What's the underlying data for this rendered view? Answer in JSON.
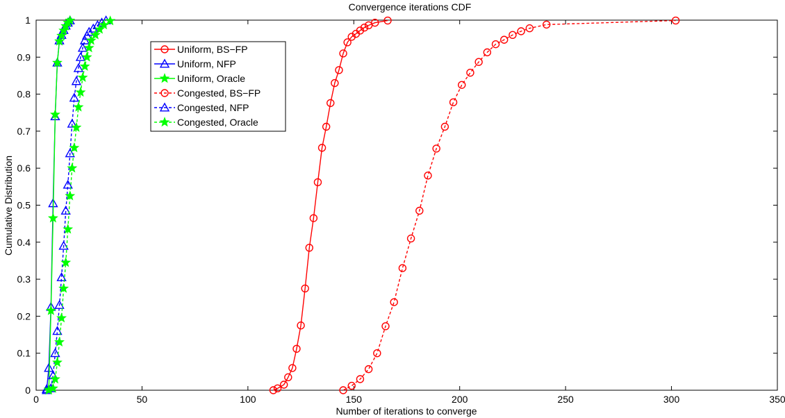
{
  "chart_data": {
    "type": "line",
    "title": "Convergence iterations CDF",
    "xlabel": "Number of iterations to converge",
    "ylabel": "Cumulative Distribution",
    "xlim": [
      0,
      350
    ],
    "ylim": [
      0,
      1
    ],
    "xticks": [
      "0",
      "50",
      "100",
      "150",
      "200",
      "250",
      "300",
      "350"
    ],
    "yticks": [
      "0",
      "0.1",
      "0.2",
      "0.3",
      "0.4",
      "0.5",
      "0.6",
      "0.7",
      "0.8",
      "0.9",
      "1"
    ],
    "grid": false,
    "legend_position": "top-left",
    "series": [
      {
        "name": "Uniform, BS−FP",
        "color": "#ff0000",
        "line": "solid",
        "marker": "circle",
        "points": [
          [
            112,
            0
          ],
          [
            114,
            0.005
          ],
          [
            117,
            0.015
          ],
          [
            119,
            0.035
          ],
          [
            121,
            0.06
          ],
          [
            123,
            0.112
          ],
          [
            125,
            0.175
          ],
          [
            127,
            0.275
          ],
          [
            129,
            0.385
          ],
          [
            131,
            0.465
          ],
          [
            133,
            0.562
          ],
          [
            135,
            0.655
          ],
          [
            137,
            0.712
          ],
          [
            139,
            0.776
          ],
          [
            141,
            0.83
          ],
          [
            143,
            0.865
          ],
          [
            145,
            0.91
          ],
          [
            147,
            0.94
          ],
          [
            149,
            0.955
          ],
          [
            151,
            0.963
          ],
          [
            153,
            0.972
          ],
          [
            155,
            0.98
          ],
          [
            157,
            0.986
          ],
          [
            160,
            0.993
          ],
          [
            166,
            0.999
          ]
        ]
      },
      {
        "name": "Uniform, NFP",
        "color": "#0000ff",
        "line": "solid",
        "marker": "triangle",
        "points": [
          [
            5,
            0.003
          ],
          [
            6,
            0.06
          ],
          [
            7,
            0.225
          ],
          [
            8,
            0.505
          ],
          [
            9,
            0.74
          ],
          [
            10,
            0.885
          ],
          [
            11,
            0.945
          ],
          [
            12,
            0.96
          ],
          [
            13,
            0.973
          ],
          [
            14,
            0.985
          ],
          [
            15,
            0.993
          ],
          [
            16,
            0.999
          ]
        ]
      },
      {
        "name": "Uniform, Oracle",
        "color": "#00ff00",
        "line": "solid",
        "marker": "star",
        "points": [
          [
            6,
            0.003
          ],
          [
            7,
            0.215
          ],
          [
            8,
            0.465
          ],
          [
            9,
            0.745
          ],
          [
            10,
            0.885
          ],
          [
            11,
            0.943
          ],
          [
            12,
            0.958
          ],
          [
            13,
            0.972
          ],
          [
            14,
            0.984
          ],
          [
            15,
            0.993
          ],
          [
            16,
            0.999
          ]
        ]
      },
      {
        "name": "Congested, BS−FP",
        "color": "#ff0000",
        "line": "dashed",
        "marker": "circle",
        "points": [
          [
            145,
            0
          ],
          [
            149,
            0.012
          ],
          [
            153,
            0.03
          ],
          [
            157,
            0.057
          ],
          [
            161,
            0.1
          ],
          [
            165,
            0.173
          ],
          [
            169,
            0.238
          ],
          [
            173,
            0.33
          ],
          [
            177,
            0.41
          ],
          [
            181,
            0.485
          ],
          [
            185,
            0.58
          ],
          [
            189,
            0.653
          ],
          [
            193,
            0.712
          ],
          [
            197,
            0.778
          ],
          [
            201,
            0.825
          ],
          [
            205,
            0.858
          ],
          [
            209,
            0.887
          ],
          [
            213,
            0.913
          ],
          [
            217,
            0.935
          ],
          [
            221,
            0.947
          ],
          [
            225,
            0.96
          ],
          [
            229,
            0.97
          ],
          [
            233,
            0.978
          ],
          [
            241,
            0.988
          ],
          [
            302,
            0.999
          ]
        ]
      },
      {
        "name": "Congested, NFP",
        "color": "#0000ff",
        "line": "dashed",
        "marker": "triangle",
        "points": [
          [
            5,
            0
          ],
          [
            7,
            0.005
          ],
          [
            8,
            0.04
          ],
          [
            9,
            0.1
          ],
          [
            10,
            0.16
          ],
          [
            11,
            0.23
          ],
          [
            12,
            0.305
          ],
          [
            13,
            0.39
          ],
          [
            14,
            0.485
          ],
          [
            15,
            0.555
          ],
          [
            16,
            0.64
          ],
          [
            17,
            0.72
          ],
          [
            18,
            0.79
          ],
          [
            19,
            0.835
          ],
          [
            20,
            0.87
          ],
          [
            21,
            0.9
          ],
          [
            22,
            0.925
          ],
          [
            23,
            0.945
          ],
          [
            24,
            0.958
          ],
          [
            25,
            0.968
          ],
          [
            27,
            0.977
          ],
          [
            29,
            0.986
          ],
          [
            31,
            0.993
          ],
          [
            33,
            0.999
          ]
        ]
      },
      {
        "name": "Congested, Oracle",
        "color": "#00ff00",
        "line": "dashed",
        "marker": "star",
        "points": [
          [
            6,
            0
          ],
          [
            8,
            0.005
          ],
          [
            9,
            0.03
          ],
          [
            10,
            0.075
          ],
          [
            11,
            0.13
          ],
          [
            12,
            0.195
          ],
          [
            13,
            0.275
          ],
          [
            14,
            0.345
          ],
          [
            15,
            0.435
          ],
          [
            16,
            0.525
          ],
          [
            17,
            0.6
          ],
          [
            18,
            0.655
          ],
          [
            19,
            0.71
          ],
          [
            20,
            0.765
          ],
          [
            21,
            0.805
          ],
          [
            22,
            0.845
          ],
          [
            23,
            0.875
          ],
          [
            24,
            0.9
          ],
          [
            25,
            0.925
          ],
          [
            26,
            0.945
          ],
          [
            28,
            0.96
          ],
          [
            30,
            0.975
          ],
          [
            32,
            0.987
          ],
          [
            35,
            0.998
          ]
        ]
      }
    ]
  }
}
